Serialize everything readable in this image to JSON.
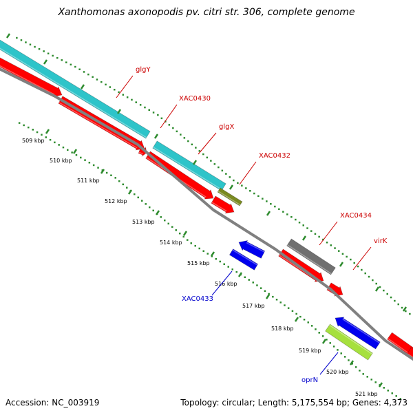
{
  "title": "Xanthomonas axonopodis pv. citri str. 306, complete genome",
  "footer": {
    "accession": "Accession: NC_003919",
    "info": "Topology: circular; Length: 5,175,554 bp; Genes: 4,373"
  },
  "colors": {
    "background": "#ffffff",
    "backbone": "#808080",
    "dots": "#2e8b2e",
    "red_gene": "#ff0000",
    "cyan_gene": "#2ec4c9",
    "blue_gene": "#0000ee",
    "gray_gene": "#707070",
    "olive_gene": "#7a8a20",
    "lime_gene": "#a6e03e",
    "forward_label": "#cc0000",
    "reverse_label": "#0000cc"
  },
  "scale_ticks": [
    {
      "label": "509 kbp"
    },
    {
      "label": "510 kbp"
    },
    {
      "label": "511 kbp"
    },
    {
      "label": "512 kbp"
    },
    {
      "label": "513 kbp"
    },
    {
      "label": "514 kbp"
    },
    {
      "label": "515 kbp"
    },
    {
      "label": "516 kbp"
    },
    {
      "label": "517 kbp"
    },
    {
      "label": "518 kbp"
    },
    {
      "label": "519 kbp"
    },
    {
      "label": "520 kbp"
    },
    {
      "label": "521 kbp"
    }
  ],
  "gene_labels": [
    {
      "text": "glgY",
      "strand": "forward"
    },
    {
      "text": "XAC0430",
      "strand": "forward"
    },
    {
      "text": "glgX",
      "strand": "forward"
    },
    {
      "text": "XAC0432",
      "strand": "forward"
    },
    {
      "text": "XAC0434",
      "strand": "forward"
    },
    {
      "text": "virK",
      "strand": "forward"
    },
    {
      "text": "XAC0433",
      "strand": "reverse"
    },
    {
      "text": "oprN",
      "strand": "reverse"
    }
  ]
}
